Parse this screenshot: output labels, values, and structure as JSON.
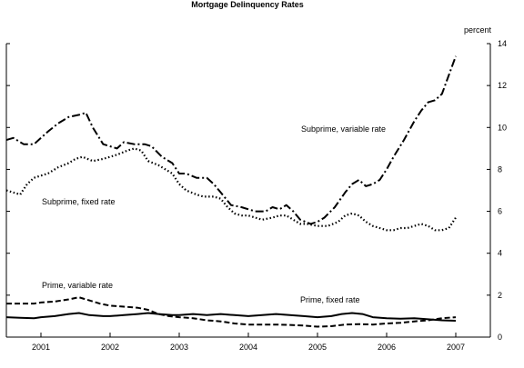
{
  "chart_data": {
    "type": "line",
    "title": "Mortgage Delinquency Rates",
    "unit_label": "percent",
    "xlabel": "",
    "ylabel": "",
    "xlim": [
      2000.5,
      2007.5
    ],
    "ylim": [
      0,
      14
    ],
    "y_ticks": [
      0,
      2,
      4,
      6,
      8,
      10,
      12,
      14
    ],
    "x_tick_labels": [
      "2001",
      "2002",
      "2003",
      "2004",
      "2005",
      "2006",
      "2007"
    ],
    "grid": false,
    "legend": "inline labels",
    "series": [
      {
        "name": "Subprime, variable rate",
        "style": "dash-dot",
        "points": [
          [
            2000.5,
            9.4
          ],
          [
            2000.6,
            9.5
          ],
          [
            2000.75,
            9.2
          ],
          [
            2000.9,
            9.2
          ],
          [
            2001.0,
            9.5
          ],
          [
            2001.1,
            9.8
          ],
          [
            2001.25,
            10.2
          ],
          [
            2001.4,
            10.5
          ],
          [
            2001.55,
            10.6
          ],
          [
            2001.65,
            10.7
          ],
          [
            2001.75,
            10.0
          ],
          [
            2001.9,
            9.2
          ],
          [
            2002.0,
            9.1
          ],
          [
            2002.1,
            9.0
          ],
          [
            2002.2,
            9.3
          ],
          [
            2002.35,
            9.2
          ],
          [
            2002.5,
            9.2
          ],
          [
            2002.6,
            9.1
          ],
          [
            2002.75,
            8.6
          ],
          [
            2002.9,
            8.3
          ],
          [
            2003.0,
            7.8
          ],
          [
            2003.1,
            7.8
          ],
          [
            2003.25,
            7.6
          ],
          [
            2003.4,
            7.6
          ],
          [
            2003.5,
            7.3
          ],
          [
            2003.6,
            6.9
          ],
          [
            2003.75,
            6.3
          ],
          [
            2003.9,
            6.2
          ],
          [
            2004.0,
            6.1
          ],
          [
            2004.1,
            6.0
          ],
          [
            2004.25,
            6.0
          ],
          [
            2004.35,
            6.2
          ],
          [
            2004.45,
            6.1
          ],
          [
            2004.55,
            6.3
          ],
          [
            2004.65,
            6.0
          ],
          [
            2004.75,
            5.6
          ],
          [
            2004.9,
            5.4
          ],
          [
            2005.0,
            5.5
          ],
          [
            2005.1,
            5.7
          ],
          [
            2005.25,
            6.2
          ],
          [
            2005.4,
            6.9
          ],
          [
            2005.5,
            7.3
          ],
          [
            2005.6,
            7.5
          ],
          [
            2005.7,
            7.2
          ],
          [
            2005.8,
            7.3
          ],
          [
            2005.9,
            7.5
          ],
          [
            2006.0,
            8.0
          ],
          [
            2006.1,
            8.6
          ],
          [
            2006.25,
            9.4
          ],
          [
            2006.4,
            10.3
          ],
          [
            2006.5,
            10.8
          ],
          [
            2006.6,
            11.2
          ],
          [
            2006.7,
            11.3
          ],
          [
            2006.8,
            11.6
          ],
          [
            2006.9,
            12.5
          ],
          [
            2007.0,
            13.4
          ]
        ]
      },
      {
        "name": "Subprime, fixed rate",
        "style": "dotted",
        "points": [
          [
            2000.5,
            7.0
          ],
          [
            2000.6,
            6.9
          ],
          [
            2000.7,
            6.8
          ],
          [
            2000.8,
            7.3
          ],
          [
            2000.9,
            7.6
          ],
          [
            2001.0,
            7.7
          ],
          [
            2001.1,
            7.8
          ],
          [
            2001.25,
            8.1
          ],
          [
            2001.4,
            8.3
          ],
          [
            2001.5,
            8.5
          ],
          [
            2001.6,
            8.6
          ],
          [
            2001.75,
            8.4
          ],
          [
            2001.9,
            8.5
          ],
          [
            2002.0,
            8.6
          ],
          [
            2002.1,
            8.7
          ],
          [
            2002.25,
            8.9
          ],
          [
            2002.35,
            9.0
          ],
          [
            2002.45,
            8.9
          ],
          [
            2002.55,
            8.4
          ],
          [
            2002.7,
            8.2
          ],
          [
            2002.9,
            7.8
          ],
          [
            2003.0,
            7.3
          ],
          [
            2003.1,
            7.0
          ],
          [
            2003.25,
            6.8
          ],
          [
            2003.35,
            6.7
          ],
          [
            2003.5,
            6.7
          ],
          [
            2003.6,
            6.6
          ],
          [
            2003.7,
            6.2
          ],
          [
            2003.8,
            5.9
          ],
          [
            2003.9,
            5.8
          ],
          [
            2004.0,
            5.8
          ],
          [
            2004.1,
            5.7
          ],
          [
            2004.2,
            5.6
          ],
          [
            2004.35,
            5.7
          ],
          [
            2004.45,
            5.8
          ],
          [
            2004.55,
            5.8
          ],
          [
            2004.65,
            5.6
          ],
          [
            2004.75,
            5.4
          ],
          [
            2004.85,
            5.4
          ],
          [
            2005.0,
            5.3
          ],
          [
            2005.15,
            5.3
          ],
          [
            2005.3,
            5.5
          ],
          [
            2005.4,
            5.8
          ],
          [
            2005.5,
            5.9
          ],
          [
            2005.6,
            5.8
          ],
          [
            2005.7,
            5.5
          ],
          [
            2005.8,
            5.3
          ],
          [
            2005.9,
            5.2
          ],
          [
            2006.0,
            5.1
          ],
          [
            2006.1,
            5.1
          ],
          [
            2006.2,
            5.2
          ],
          [
            2006.3,
            5.2
          ],
          [
            2006.4,
            5.3
          ],
          [
            2006.5,
            5.4
          ],
          [
            2006.6,
            5.3
          ],
          [
            2006.7,
            5.1
          ],
          [
            2006.8,
            5.1
          ],
          [
            2006.9,
            5.2
          ],
          [
            2007.0,
            5.7
          ]
        ]
      },
      {
        "name": "Prime, variable rate",
        "style": "dashed",
        "points": [
          [
            2000.5,
            1.6
          ],
          [
            2000.7,
            1.6
          ],
          [
            2000.9,
            1.6
          ],
          [
            2001.0,
            1.65
          ],
          [
            2001.2,
            1.7
          ],
          [
            2001.4,
            1.8
          ],
          [
            2001.55,
            1.9
          ],
          [
            2001.7,
            1.75
          ],
          [
            2001.85,
            1.6
          ],
          [
            2002.0,
            1.5
          ],
          [
            2002.2,
            1.45
          ],
          [
            2002.4,
            1.4
          ],
          [
            2002.55,
            1.3
          ],
          [
            2002.7,
            1.1
          ],
          [
            2002.85,
            1.0
          ],
          [
            2003.0,
            0.95
          ],
          [
            2003.2,
            0.9
          ],
          [
            2003.4,
            0.8
          ],
          [
            2003.6,
            0.75
          ],
          [
            2003.8,
            0.65
          ],
          [
            2004.0,
            0.6
          ],
          [
            2004.2,
            0.6
          ],
          [
            2004.4,
            0.6
          ],
          [
            2004.6,
            0.58
          ],
          [
            2004.8,
            0.55
          ],
          [
            2005.0,
            0.5
          ],
          [
            2005.2,
            0.52
          ],
          [
            2005.4,
            0.6
          ],
          [
            2005.6,
            0.62
          ],
          [
            2005.8,
            0.6
          ],
          [
            2006.0,
            0.65
          ],
          [
            2006.2,
            0.68
          ],
          [
            2006.4,
            0.75
          ],
          [
            2006.6,
            0.8
          ],
          [
            2006.8,
            0.9
          ],
          [
            2007.0,
            0.95
          ]
        ]
      },
      {
        "name": "Prime, fixed rate",
        "style": "solid",
        "points": [
          [
            2000.5,
            0.95
          ],
          [
            2000.7,
            0.92
          ],
          [
            2000.9,
            0.9
          ],
          [
            2001.0,
            0.95
          ],
          [
            2001.2,
            1.0
          ],
          [
            2001.4,
            1.1
          ],
          [
            2001.55,
            1.15
          ],
          [
            2001.7,
            1.05
          ],
          [
            2001.9,
            1.0
          ],
          [
            2002.0,
            1.0
          ],
          [
            2002.2,
            1.05
          ],
          [
            2002.4,
            1.1
          ],
          [
            2002.55,
            1.15
          ],
          [
            2002.7,
            1.1
          ],
          [
            2002.9,
            1.05
          ],
          [
            2003.0,
            1.05
          ],
          [
            2003.2,
            1.1
          ],
          [
            2003.4,
            1.05
          ],
          [
            2003.6,
            1.1
          ],
          [
            2003.8,
            1.05
          ],
          [
            2004.0,
            1.0
          ],
          [
            2004.2,
            1.05
          ],
          [
            2004.4,
            1.1
          ],
          [
            2004.6,
            1.05
          ],
          [
            2004.8,
            1.0
          ],
          [
            2005.0,
            0.95
          ],
          [
            2005.2,
            1.0
          ],
          [
            2005.35,
            1.1
          ],
          [
            2005.5,
            1.15
          ],
          [
            2005.65,
            1.1
          ],
          [
            2005.8,
            0.95
          ],
          [
            2006.0,
            0.9
          ],
          [
            2006.2,
            0.88
          ],
          [
            2006.4,
            0.9
          ],
          [
            2006.6,
            0.85
          ],
          [
            2006.8,
            0.8
          ],
          [
            2007.0,
            0.78
          ]
        ]
      }
    ]
  }
}
